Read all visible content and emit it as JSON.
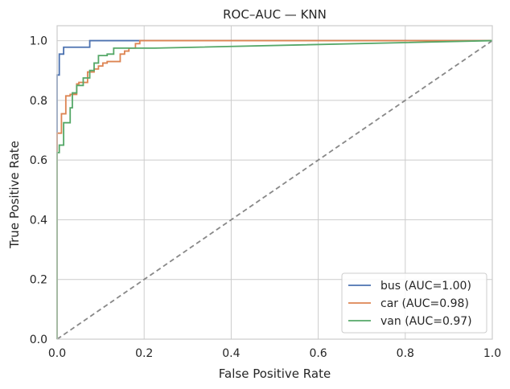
{
  "chart_data": {
    "type": "line",
    "title": "ROC–AUC — KNN",
    "xlabel": "False Positive Rate",
    "ylabel": "True Positive Rate",
    "xlim": [
      0,
      1
    ],
    "ylim": [
      0,
      1.05
    ],
    "xticks": [
      0.0,
      0.2,
      0.4,
      0.6,
      0.8,
      1.0
    ],
    "xtick_labels": [
      "0.0",
      "0.2",
      "0.4",
      "0.6",
      "0.8",
      "1.0"
    ],
    "yticks": [
      0.0,
      0.2,
      0.4,
      0.6,
      0.8,
      1.0
    ],
    "ytick_labels": [
      "0.0",
      "0.2",
      "0.4",
      "0.6",
      "0.8",
      "1.0"
    ],
    "grid": true,
    "legend_position": "bottom-right",
    "series": [
      {
        "name": "bus (AUC=1.00)",
        "color": "#4c72b0",
        "x": [
          0,
          0,
          0.005,
          0.005,
          0.015,
          0.015,
          0.075,
          0.075,
          0.19,
          0.19,
          1.0
        ],
        "y": [
          0,
          0.885,
          0.885,
          0.955,
          0.955,
          0.978,
          0.978,
          1.0,
          1.0,
          1.0,
          1.0
        ]
      },
      {
        "name": "car (AUC=0.98)",
        "color": "#dd8452",
        "x": [
          0,
          0,
          0.01,
          0.01,
          0.02,
          0.02,
          0.03,
          0.03,
          0.045,
          0.045,
          0.05,
          0.05,
          0.07,
          0.07,
          0.085,
          0.085,
          0.095,
          0.095,
          0.105,
          0.105,
          0.115,
          0.115,
          0.145,
          0.145,
          0.155,
          0.155,
          0.165,
          0.165,
          0.18,
          0.18,
          0.19,
          0.19,
          1.0
        ],
        "y": [
          0,
          0.69,
          0.69,
          0.755,
          0.755,
          0.815,
          0.815,
          0.82,
          0.82,
          0.855,
          0.855,
          0.86,
          0.86,
          0.895,
          0.895,
          0.905,
          0.905,
          0.915,
          0.915,
          0.925,
          0.925,
          0.93,
          0.93,
          0.955,
          0.955,
          0.965,
          0.965,
          0.975,
          0.975,
          0.99,
          0.99,
          1.0,
          1.0
        ]
      },
      {
        "name": "van (AUC=0.97)",
        "color": "#55a868",
        "x": [
          0,
          0,
          0.005,
          0.005,
          0.015,
          0.015,
          0.03,
          0.03,
          0.035,
          0.035,
          0.045,
          0.045,
          0.06,
          0.06,
          0.075,
          0.075,
          0.085,
          0.085,
          0.095,
          0.095,
          0.115,
          0.115,
          0.13,
          0.13,
          0.225,
          1.0
        ],
        "y": [
          0,
          0.625,
          0.625,
          0.65,
          0.65,
          0.725,
          0.725,
          0.775,
          0.775,
          0.825,
          0.825,
          0.85,
          0.85,
          0.875,
          0.875,
          0.9,
          0.9,
          0.925,
          0.925,
          0.95,
          0.95,
          0.955,
          0.955,
          0.975,
          0.975,
          1.0
        ]
      }
    ],
    "reference_line": {
      "color": "#888888",
      "style": "dashed",
      "x": [
        0,
        1
      ],
      "y": [
        0,
        1
      ]
    }
  }
}
